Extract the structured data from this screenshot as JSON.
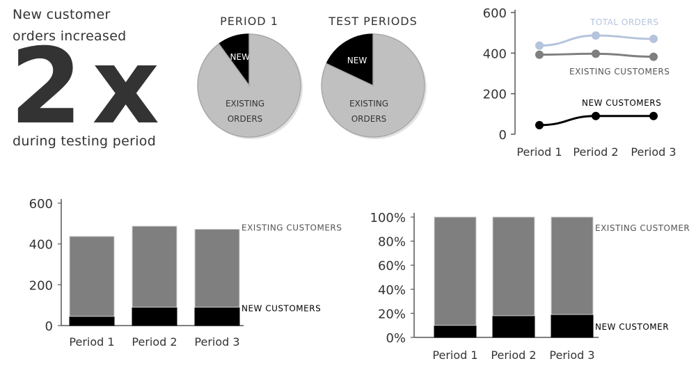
{
  "headline": {
    "line1": "New customer",
    "line2": "orders increased",
    "big": "2x",
    "footer": "during testing period"
  },
  "colors": {
    "new": "#000000",
    "existing": "#7f7f7f",
    "pie_existing": "#c0c0c0",
    "total": "#b4c4dc",
    "text": "#333333",
    "axis": "#555555"
  },
  "chart_data": [
    {
      "type": "pie",
      "title": "PERIOD 1",
      "slices": [
        {
          "name": "NEW",
          "value": 10
        },
        {
          "name": "EXISTING ORDERS",
          "value": 90
        }
      ]
    },
    {
      "type": "pie",
      "title": "TEST PERIODS",
      "slices": [
        {
          "name": "NEW",
          "value": 18
        },
        {
          "name": "EXISTING ORDERS",
          "value": 82
        }
      ]
    },
    {
      "type": "line",
      "categories": [
        "Period 1",
        "Period 2",
        "Period 3"
      ],
      "ylim": [
        0,
        600
      ],
      "yticks": [
        0,
        200,
        400,
        600
      ],
      "series": [
        {
          "name": "TOTAL ORDERS",
          "values": [
            437,
            487,
            470
          ]
        },
        {
          "name": "EXISTING CUSTOMERS",
          "values": [
            392,
            397,
            382
          ]
        },
        {
          "name": "NEW CUSTOMERS",
          "values": [
            45,
            90,
            90
          ]
        }
      ]
    },
    {
      "type": "bar",
      "stacked": true,
      "categories": [
        "Period 1",
        "Period 2",
        "Period 3"
      ],
      "ylim": [
        0,
        600
      ],
      "yticks": [
        0,
        200,
        400,
        600
      ],
      "series": [
        {
          "name": "NEW CUSTOMERS",
          "values": [
            45,
            90,
            90
          ]
        },
        {
          "name": "EXISTING CUSTOMERS",
          "values": [
            392,
            397,
            382
          ]
        }
      ]
    },
    {
      "type": "bar",
      "stacked": true,
      "percent": true,
      "categories": [
        "Period 1",
        "Period 2",
        "Period 3"
      ],
      "ylim": [
        0,
        100
      ],
      "yticks": [
        0,
        20,
        40,
        60,
        80,
        100
      ],
      "ytick_labels": [
        "0%",
        "20%",
        "40%",
        "60%",
        "80%",
        "100%"
      ],
      "series": [
        {
          "name": "NEW CUSTOMER",
          "values": [
            10,
            18,
            19
          ]
        },
        {
          "name": "EXISTING CUSTOMER",
          "values": [
            90,
            82,
            81
          ]
        }
      ]
    }
  ]
}
